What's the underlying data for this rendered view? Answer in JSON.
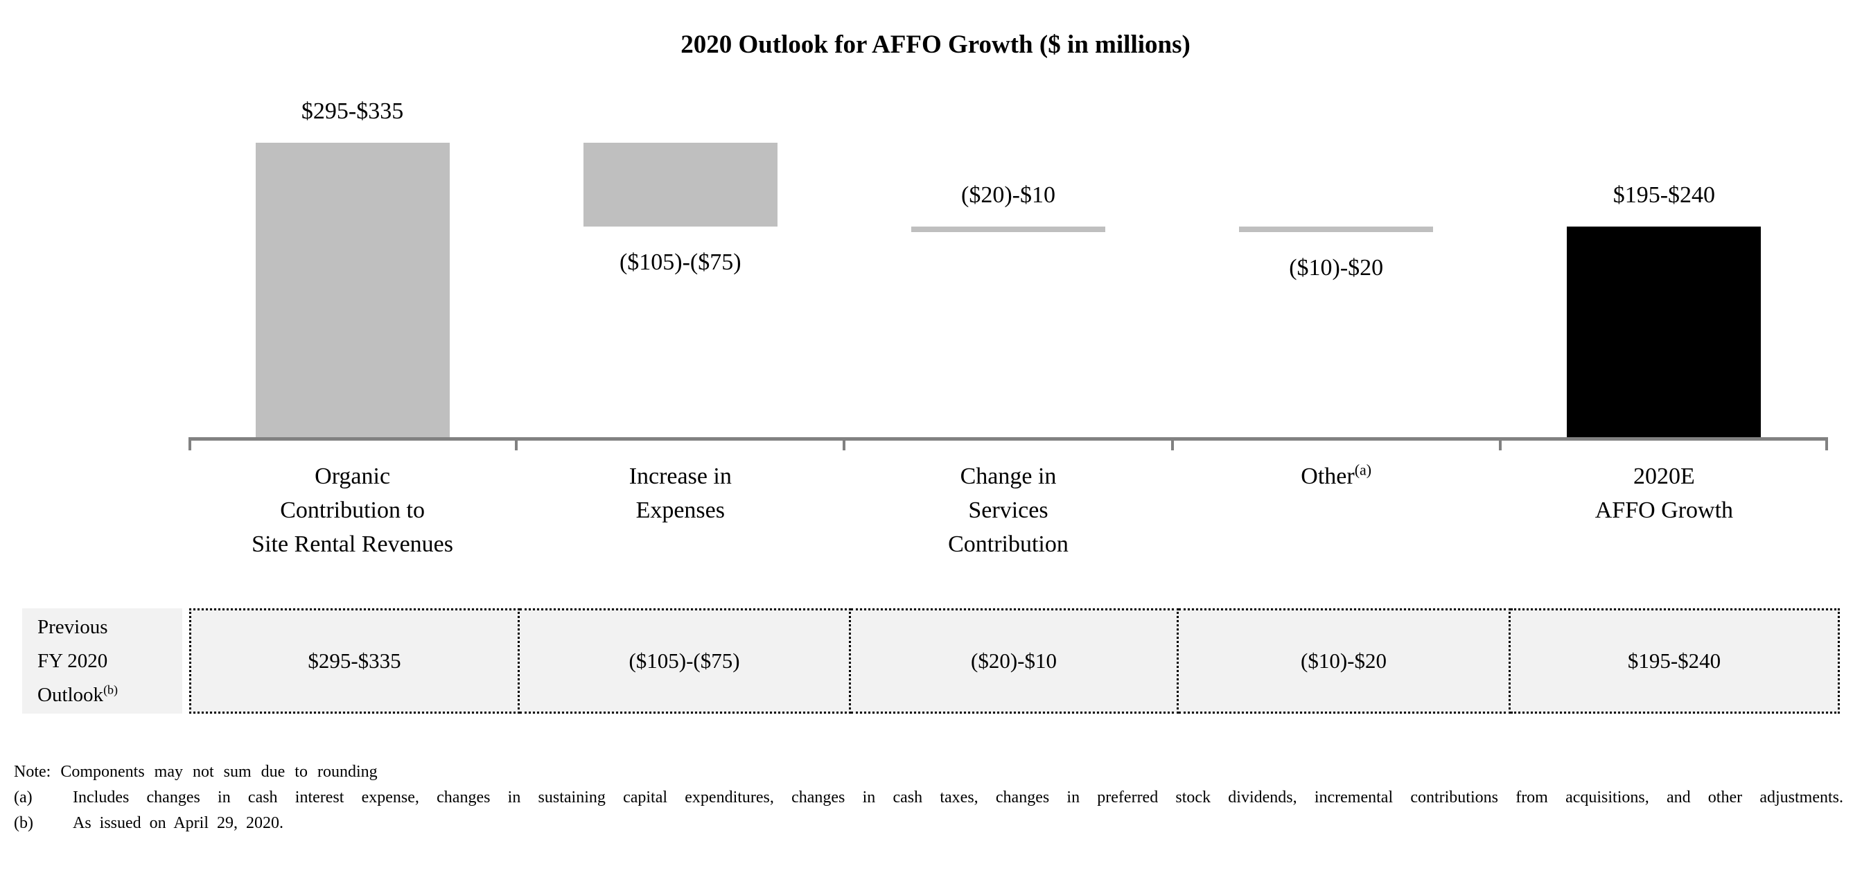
{
  "colors": {
    "gray": "#bfbfbf",
    "black": "#000000",
    "axis": "#818181",
    "table_bg": "#f2f2f2"
  },
  "chart_data": {
    "type": "bar",
    "subtype": "waterfall",
    "title": "2020 Outlook for AFFO Growth ($ in millions)",
    "xlabel": "",
    "ylabel": "",
    "value_axis_visible": false,
    "grid": false,
    "legend": "none",
    "baseline_value": 0,
    "categories": [
      "Organic Contribution to Site Rental Revenues",
      "Increase in Expenses",
      "Change in Services Contribution",
      "Other(a)",
      "2020E AFFO Growth"
    ],
    "bars": [
      {
        "category_lines": [
          "Organic",
          "Contribution to",
          "Site Rental Revenues"
        ],
        "value_label": "$295-$335",
        "range": [
          295,
          335
        ],
        "draw_start": 0,
        "draw_end": 315,
        "color_key": "gray",
        "label_side": "above"
      },
      {
        "category_lines": [
          "Increase in",
          "Expenses"
        ],
        "value_label": "($105)-($75)",
        "range": [
          -105,
          -75
        ],
        "draw_start": 315,
        "draw_end": 225,
        "color_key": "gray",
        "label_side": "below"
      },
      {
        "category_lines": [
          "Change in",
          "Services",
          "Contribution"
        ],
        "value_label": "($20)-$10",
        "range": [
          -20,
          10
        ],
        "draw_start": 225,
        "draw_end": 220,
        "color_key": "gray",
        "label_side": "above"
      },
      {
        "category_lines": [
          "Other"
        ],
        "category_sup": "(a)",
        "value_label": "($10)-$20",
        "range": [
          -10,
          20
        ],
        "draw_start": 220,
        "draw_end": 225,
        "color_key": "gray",
        "label_side": "below"
      },
      {
        "category_lines": [
          "2020E",
          "AFFO Growth"
        ],
        "value_label": "$195-$240",
        "range": [
          195,
          240
        ],
        "draw_start": 0,
        "draw_end": 225,
        "color_key": "black",
        "label_side": "above"
      }
    ]
  },
  "table": {
    "row_label": {
      "line1": "Previous",
      "line2": "FY 2020",
      "line3": "Outlook",
      "sup": "(b)"
    },
    "cells": [
      "$295-$335",
      "($105)-($75)",
      "($20)-$10",
      "($10)-$20",
      "$195-$240"
    ]
  },
  "notes": {
    "note": "Note: Components may not sum due to rounding",
    "a_label": "(a)",
    "a_text": "Includes changes in cash interest expense, changes in sustaining capital expenditures, changes in cash taxes, changes in preferred stock dividends, incremental contributions from acquisitions, and other adjustments.",
    "b_label": "(b)",
    "b_text": "As issued on April 29, 2020."
  }
}
